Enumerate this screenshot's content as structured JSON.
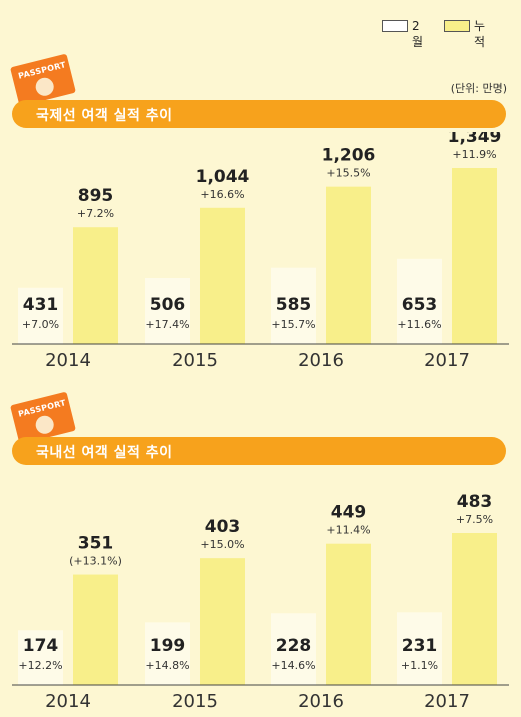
{
  "legend": [
    {
      "label": "2월",
      "color": "#ffffff"
    },
    {
      "label": "누적",
      "color": "#f8ef8a"
    }
  ],
  "unit_label": "(단위: 만명)",
  "passport_label": "PASSPORT",
  "colors": {
    "header": "#f7a21c",
    "feb_bar": "#fefbe8",
    "cum_bar": "#f8ef8a",
    "background": "#fdf7d2",
    "passport": "#f47b20"
  },
  "chart_data": [
    {
      "type": "bar",
      "title": "국제선 여객 실적 추이",
      "categories": [
        "2014",
        "2015",
        "2016",
        "2017"
      ],
      "series": [
        {
          "name": "2월",
          "values": [
            431,
            506,
            585,
            653
          ],
          "growth": [
            "+7.0%",
            "+17.4%",
            "+15.7%",
            "+11.6%"
          ]
        },
        {
          "name": "누적",
          "values": [
            895,
            1044,
            1206,
            1349
          ],
          "value_labels": [
            "895",
            "1,044",
            "1,206",
            "1,349"
          ],
          "growth": [
            "+7.2%",
            "+16.6%",
            "+15.5%",
            "+11.9%"
          ]
        }
      ],
      "ylim": [
        0,
        1349
      ]
    },
    {
      "type": "bar",
      "title": "국내선 여객 실적 추이",
      "categories": [
        "2014",
        "2015",
        "2016",
        "2017"
      ],
      "series": [
        {
          "name": "2월",
          "values": [
            174,
            199,
            228,
            231
          ],
          "growth": [
            "+12.2%",
            "+14.8%",
            "+14.6%",
            "+1.1%"
          ]
        },
        {
          "name": "누적",
          "values": [
            351,
            403,
            449,
            483
          ],
          "value_labels": [
            "351",
            "403",
            "449",
            "483"
          ],
          "growth": [
            "(+13.1%)",
            "+15.0%",
            "+11.4%",
            "+7.5%"
          ]
        }
      ],
      "ylim": [
        0,
        483
      ]
    }
  ]
}
